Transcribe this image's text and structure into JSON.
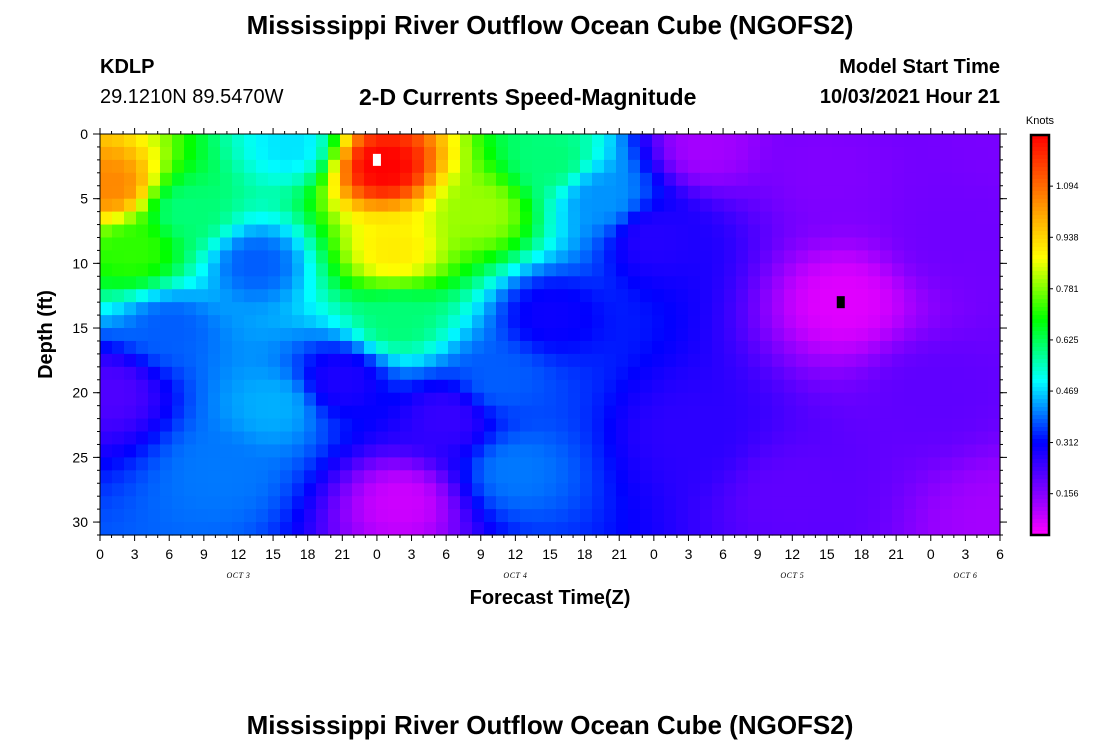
{
  "header": {
    "title": "Mississippi River Outflow Ocean Cube (NGOFS2)",
    "station": "KDLP",
    "coords": "29.1210N  89.5470W",
    "subtitle": "2-D Currents Speed-Magnitude",
    "model_start_label": "Model Start Time",
    "model_start_value": "10/03/2021 Hour 21"
  },
  "footer": {
    "title": "Mississippi River Outflow Ocean Cube (NGOFS2)"
  },
  "chart_data": {
    "type": "heatmap",
    "title": "2-D Currents Speed-Magnitude",
    "xlabel": "Forecast Time(Z)",
    "ylabel": "Depth (ft)",
    "x_tick_labels": [
      "0",
      "3",
      "6",
      "9",
      "12",
      "15",
      "18",
      "21",
      "0",
      "3",
      "6",
      "9",
      "12",
      "15",
      "18",
      "21",
      "0",
      "3",
      "6",
      "9",
      "12",
      "15",
      "18",
      "21",
      "0",
      "3",
      "6"
    ],
    "date_labels": [
      {
        "label": "OCT 3",
        "tick_index": 4
      },
      {
        "label": "OCT 4",
        "tick_index": 12
      },
      {
        "label": "OCT 5",
        "tick_index": 20
      },
      {
        "label": "OCT 6",
        "tick_index": 25
      }
    ],
    "y_ticks": [
      0,
      5,
      10,
      15,
      20,
      25,
      30
    ],
    "ylim": [
      0,
      31
    ],
    "inverted_y": true,
    "colorbar": {
      "unit": "Knots",
      "ticks": [
        "0.156",
        "0.312",
        "0.469",
        "0.625",
        "0.781",
        "0.938",
        "1.094"
      ],
      "range": [
        0.03,
        1.25
      ],
      "colors": [
        "#ff00ff",
        "#a000ff",
        "#5000ff",
        "#0000ff",
        "#0080ff",
        "#00ffff",
        "#00ff80",
        "#00ff00",
        "#80ff00",
        "#ffff00",
        "#ffc000",
        "#ff8000",
        "#ff4000",
        "#ff0000"
      ]
    },
    "markers": [
      {
        "kind": "maximum",
        "color": "#ffffff",
        "x_index": 8.0,
        "depth_ft": 2.0
      },
      {
        "kind": "minimum",
        "color": "#000000",
        "x_index": 21.4,
        "depth_ft": 13.0
      }
    ],
    "features": [
      {
        "x_index": 0.3,
        "depth_ft": 4.0,
        "speed_knots": 1.05
      },
      {
        "x_index": 1.0,
        "depth_ft": 9.0,
        "speed_knots": 0.72
      },
      {
        "x_index": 8.2,
        "depth_ft": 2.5,
        "speed_knots": 1.25
      },
      {
        "x_index": 8.5,
        "depth_ft": 9.0,
        "speed_knots": 0.9
      },
      {
        "x_index": 8.6,
        "depth_ft": 14.5,
        "speed_knots": 0.6
      },
      {
        "x_index": 11.0,
        "depth_ft": 6.0,
        "speed_knots": 0.8
      },
      {
        "x_index": 13.0,
        "depth_ft": 2.0,
        "speed_knots": 0.6
      },
      {
        "x_index": 14.5,
        "depth_ft": 5.0,
        "speed_knots": 0.42
      },
      {
        "x_index": 5.5,
        "depth_ft": 1.0,
        "speed_knots": 0.48
      },
      {
        "x_index": 2.5,
        "depth_ft": 6.0,
        "speed_knots": 0.6
      },
      {
        "x_index": 4.5,
        "depth_ft": 10.0,
        "speed_knots": 0.38
      },
      {
        "x_index": 2.0,
        "depth_ft": 15.0,
        "speed_knots": 0.38
      },
      {
        "x_index": 5.0,
        "depth_ft": 21.0,
        "speed_knots": 0.44
      },
      {
        "x_index": 3.5,
        "depth_ft": 26.0,
        "speed_knots": 0.4
      },
      {
        "x_index": 0.3,
        "depth_ft": 20.0,
        "speed_knots": 0.22
      },
      {
        "x_index": 7.0,
        "depth_ft": 19.0,
        "speed_knots": 0.28
      },
      {
        "x_index": 8.7,
        "depth_ft": 28.5,
        "speed_knots": 0.08
      },
      {
        "x_index": 10.0,
        "depth_ft": 22.0,
        "speed_knots": 0.25
      },
      {
        "x_index": 12.0,
        "depth_ft": 26.0,
        "speed_knots": 0.4
      },
      {
        "x_index": 11.5,
        "depth_ft": 19.0,
        "speed_knots": 0.38
      },
      {
        "x_index": 13.0,
        "depth_ft": 14.0,
        "speed_knots": 0.3
      },
      {
        "x_index": 16.0,
        "depth_ft": 8.0,
        "speed_knots": 0.27
      },
      {
        "x_index": 17.5,
        "depth_ft": 1.0,
        "speed_knots": 0.12
      },
      {
        "x_index": 21.0,
        "depth_ft": 3.0,
        "speed_knots": 0.16
      },
      {
        "x_index": 21.5,
        "depth_ft": 13.0,
        "speed_knots": 0.06
      },
      {
        "x_index": 24.5,
        "depth_ft": 8.0,
        "speed_knots": 0.18
      },
      {
        "x_index": 24.0,
        "depth_ft": 20.0,
        "speed_knots": 0.2
      },
      {
        "x_index": 17.0,
        "depth_ft": 23.0,
        "speed_knots": 0.26
      },
      {
        "x_index": 20.0,
        "depth_ft": 28.0,
        "speed_knots": 0.2
      },
      {
        "x_index": 26.0,
        "depth_ft": 30.0,
        "speed_knots": 0.12
      },
      {
        "x_index": 26.0,
        "depth_ft": 0.5,
        "speed_knots": 0.17
      }
    ]
  }
}
